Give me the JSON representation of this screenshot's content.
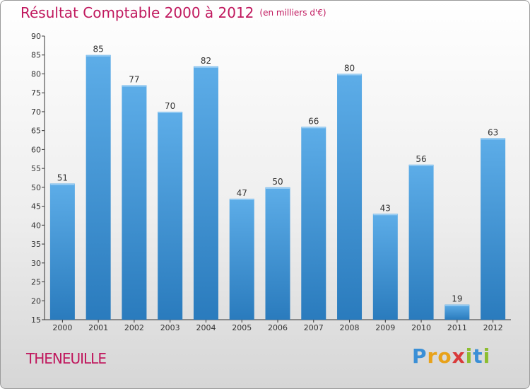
{
  "header": {
    "title": "Résultat Comptable 2000 à 2012",
    "subtitle": "(en milliers d'€)"
  },
  "footer": {
    "commune": "THENEUILLE",
    "logo": "Proxiti"
  },
  "colors": {
    "accent": "#c0175d",
    "bar_light": "#5dade8",
    "bar_dark": "#2a7bbd"
  },
  "chart_data": {
    "type": "bar",
    "title": "Résultat Comptable 2000 à 2012",
    "categories": [
      "2000",
      "2001",
      "2002",
      "2003",
      "2004",
      "2005",
      "2006",
      "2007",
      "2008",
      "2009",
      "2010",
      "2011",
      "2012"
    ],
    "values": [
      51,
      85,
      77,
      70,
      82,
      47,
      50,
      66,
      80,
      43,
      56,
      19,
      63
    ],
    "ylim": [
      15,
      90
    ],
    "yticks": [
      15,
      20,
      25,
      30,
      35,
      40,
      45,
      50,
      55,
      60,
      65,
      70,
      75,
      80,
      85,
      90
    ],
    "grid": false,
    "xlabel": "",
    "ylabel": ""
  }
}
